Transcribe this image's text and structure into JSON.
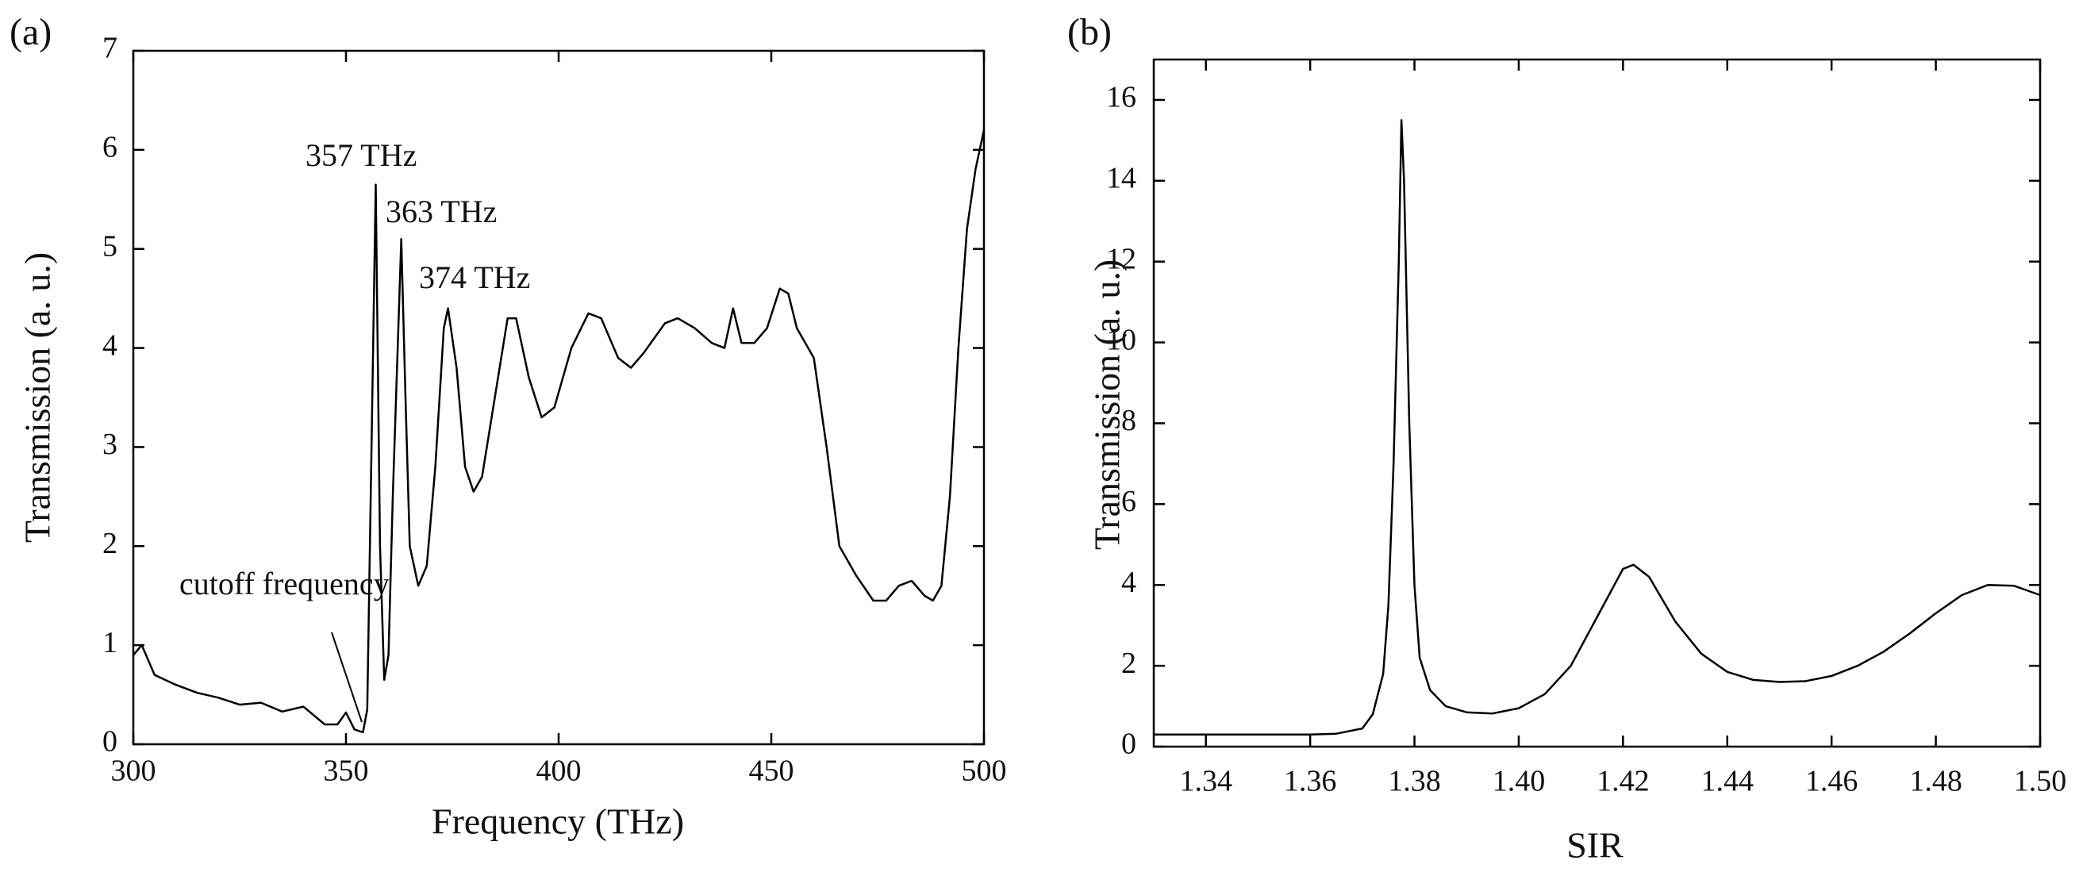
{
  "chart_data": [
    {
      "type": "line",
      "panel_label": "(a)",
      "x_label": "Frequency (THz)",
      "y_label": "Transmission (a. u.)",
      "xlim": [
        300,
        500
      ],
      "xticks": [
        300,
        350,
        400,
        450,
        500
      ],
      "ylim": [
        0,
        7
      ],
      "yticks": [
        0,
        1,
        2,
        3,
        4,
        5,
        6,
        7
      ],
      "color": "#000000",
      "annotations": [
        "357 THz",
        "363 THz",
        "374 THz",
        "cutoff frequency"
      ],
      "x": [
        300,
        302,
        305,
        310,
        315,
        320,
        325,
        330,
        335,
        340,
        345,
        348,
        350,
        352,
        354,
        355,
        356,
        357,
        358,
        359,
        360,
        361,
        363,
        364,
        365,
        367,
        369,
        371,
        373,
        374,
        376,
        378,
        380,
        382,
        385,
        388,
        390,
        393,
        396,
        399,
        403,
        407,
        410,
        414,
        417,
        420,
        425,
        428,
        432,
        436,
        439,
        441,
        443,
        446,
        449,
        452,
        454,
        456,
        460,
        463,
        466,
        470,
        474,
        477,
        480,
        483,
        486,
        488,
        490,
        492,
        494,
        496,
        498,
        500
      ],
      "values": [
        0.9,
        1.0,
        0.7,
        0.6,
        0.52,
        0.47,
        0.4,
        0.42,
        0.33,
        0.38,
        0.2,
        0.2,
        0.32,
        0.15,
        0.12,
        0.35,
        3.0,
        5.65,
        2.0,
        0.65,
        0.9,
        2.5,
        5.1,
        3.5,
        2.0,
        1.6,
        1.8,
        2.8,
        4.2,
        4.4,
        3.8,
        2.8,
        2.55,
        2.7,
        3.5,
        4.3,
        4.3,
        3.7,
        3.3,
        3.4,
        4.0,
        4.35,
        4.3,
        3.9,
        3.8,
        3.95,
        4.25,
        4.3,
        4.2,
        4.05,
        4.0,
        4.4,
        4.05,
        4.05,
        4.2,
        4.6,
        4.55,
        4.2,
        3.9,
        3.0,
        2.0,
        1.7,
        1.45,
        1.45,
        1.6,
        1.65,
        1.5,
        1.45,
        1.6,
        2.5,
        4.0,
        5.2,
        5.8,
        6.2
      ]
    },
    {
      "type": "line",
      "panel_label": "(b)",
      "x_label": "SIR",
      "y_label": "Transmission (a. u.)",
      "xlim": [
        1.33,
        1.5
      ],
      "xticks": [
        1.34,
        1.36,
        1.38,
        {
          "value": 1.4,
          "label": "1.40"
        },
        1.42,
        1.44,
        1.46,
        1.48,
        {
          "value": 1.5,
          "label": "1.50"
        }
      ],
      "ylim": [
        0,
        17
      ],
      "yticks": [
        0,
        2,
        4,
        6,
        8,
        10,
        12,
        14,
        16
      ],
      "color": "#000000",
      "x": [
        1.33,
        1.35,
        1.36,
        1.365,
        1.37,
        1.372,
        1.374,
        1.375,
        1.376,
        1.377,
        1.3775,
        1.378,
        1.379,
        1.38,
        1.381,
        1.383,
        1.386,
        1.39,
        1.395,
        1.4,
        1.405,
        1.41,
        1.415,
        1.42,
        1.422,
        1.425,
        1.43,
        1.435,
        1.44,
        1.445,
        1.45,
        1.455,
        1.46,
        1.465,
        1.47,
        1.475,
        1.48,
        1.485,
        1.49,
        1.495,
        1.5
      ],
      "values": [
        0.3,
        0.3,
        0.3,
        0.32,
        0.45,
        0.8,
        1.8,
        3.5,
        7,
        12,
        15.5,
        14,
        8,
        4,
        2.2,
        1.4,
        1.0,
        0.85,
        0.82,
        0.95,
        1.3,
        2.0,
        3.2,
        4.4,
        4.5,
        4.2,
        3.1,
        2.3,
        1.85,
        1.65,
        1.6,
        1.62,
        1.75,
        2.0,
        2.35,
        2.8,
        3.3,
        3.75,
        4.0,
        3.98,
        3.75
      ]
    }
  ]
}
